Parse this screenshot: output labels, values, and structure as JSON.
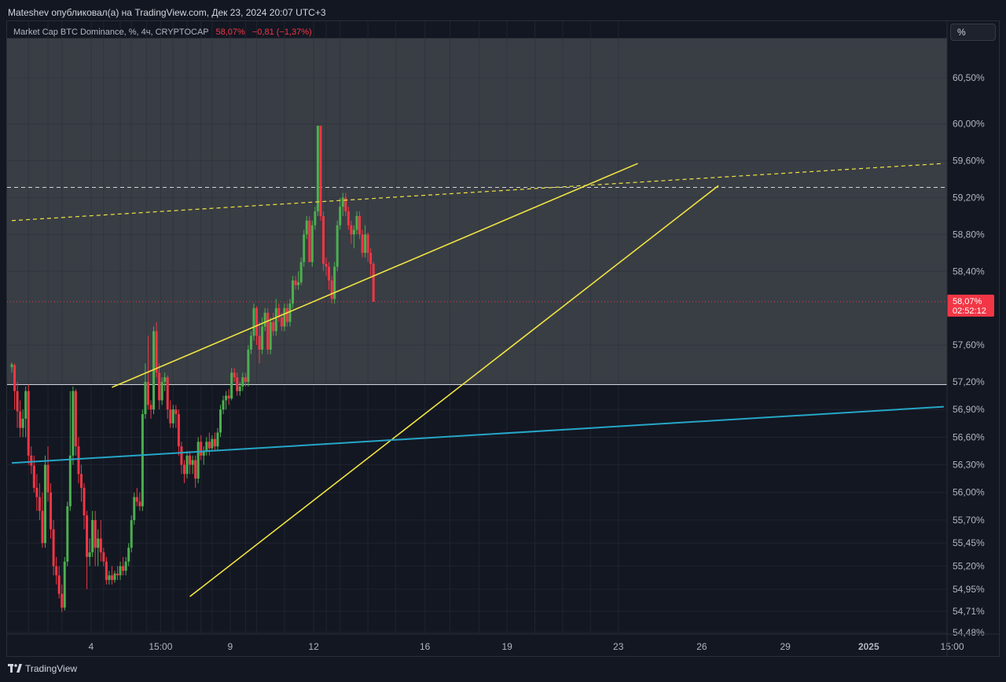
{
  "header": {
    "publish_info": "Mateshev опубликовал(а) на TradingView.com, Дек 23, 2024 20:07 UTC+3"
  },
  "legend": {
    "title": "Market Cap BTC Dominance, %, 4ч, CRYPTOCAP",
    "value": "58,07%",
    "change": "−0,81 (−1,37%)"
  },
  "scale_mode_label": "%",
  "footer": {
    "brand": "TradingView"
  },
  "colors": {
    "background": "#131722",
    "highlight_zone": "#3b4048",
    "grid": "#2a2e39",
    "up": "#4caf50",
    "down": "#f23645",
    "trendline": "#f0e442",
    "support_line": "#26a6c7",
    "horizontal_level": "#d1d4dc"
  },
  "chart_data": {
    "type": "candlestick",
    "ylim": [
      54.36,
      60.93
    ],
    "y_ticks": [
      {
        "value": 60.5,
        "label": "60,50%"
      },
      {
        "value": 60.0,
        "label": "60,00%"
      },
      {
        "value": 59.6,
        "label": "59,60%"
      },
      {
        "value": 59.2,
        "label": "59,20%"
      },
      {
        "value": 58.8,
        "label": "58,80%"
      },
      {
        "value": 58.4,
        "label": "58,40%"
      },
      {
        "value": 57.6,
        "label": "57,60%"
      },
      {
        "value": 57.2,
        "label": "57,20%"
      },
      {
        "value": 56.9,
        "label": "56,90%"
      },
      {
        "value": 56.6,
        "label": "56,60%"
      },
      {
        "value": 56.3,
        "label": "56,30%"
      },
      {
        "value": 56.0,
        "label": "56,00%"
      },
      {
        "value": 55.7,
        "label": "55,70%"
      },
      {
        "value": 55.45,
        "label": "55,45%"
      },
      {
        "value": 55.2,
        "label": "55,20%"
      },
      {
        "value": 54.95,
        "label": "54,95%"
      },
      {
        "value": 54.71,
        "label": "54,71%"
      },
      {
        "value": 54.48,
        "label": "54,48%"
      }
    ],
    "x_ticks": [
      {
        "bar": 28.5,
        "label": "4"
      },
      {
        "bar": 53.5,
        "label": "15:00"
      },
      {
        "bar": 78.5,
        "label": "9"
      },
      {
        "bar": 108.5,
        "label": "12"
      },
      {
        "bar": 148.5,
        "label": "16"
      },
      {
        "bar": 178,
        "label": "19"
      },
      {
        "bar": 218,
        "label": "23"
      },
      {
        "bar": 248,
        "label": "26"
      },
      {
        "bar": 278,
        "label": "29"
      },
      {
        "bar": 308,
        "label": "2025"
      },
      {
        "bar": 338,
        "label": "15:00"
      }
    ],
    "current_price": {
      "value": 58.07,
      "label": "58,07%",
      "countdown": "02:52:12"
    },
    "horizontal_levels": [
      {
        "value": 57.17,
        "style": "solid"
      },
      {
        "value": 59.31,
        "style": "dashed"
      }
    ],
    "highlight_zone": {
      "from": 57.17,
      "to": 60.93
    },
    "trendlines": [
      {
        "name": "upper-wedge",
        "from": [
          36,
          57.14
        ],
        "to": [
          225,
          59.57
        ],
        "style": "solid"
      },
      {
        "name": "lower-wedge",
        "from": [
          64,
          54.87
        ],
        "to": [
          254,
          59.33
        ],
        "style": "solid"
      },
      {
        "name": "dashed-resistance",
        "from": [
          0,
          58.95
        ],
        "to": [
          335,
          59.57
        ],
        "style": "dashed"
      },
      {
        "name": "support",
        "from": [
          0,
          56.32
        ],
        "to": [
          335,
          56.93
        ],
        "style": "solid"
      }
    ],
    "candles": [
      {
        "o": 57.36,
        "h": 57.41,
        "l": 57.3,
        "c": 57.39
      },
      {
        "o": 57.38,
        "h": 57.4,
        "l": 56.9,
        "c": 57.1
      },
      {
        "o": 57.1,
        "h": 57.2,
        "l": 56.7,
        "c": 56.88
      },
      {
        "o": 56.88,
        "h": 57.0,
        "l": 56.6,
        "c": 56.7
      },
      {
        "o": 56.7,
        "h": 56.9,
        "l": 56.6,
        "c": 56.8
      },
      {
        "o": 56.8,
        "h": 57.15,
        "l": 56.6,
        "c": 57.1
      },
      {
        "o": 57.1,
        "h": 57.17,
        "l": 56.3,
        "c": 56.4
      },
      {
        "o": 56.4,
        "h": 56.5,
        "l": 56.2,
        "c": 56.29
      },
      {
        "o": 56.29,
        "h": 56.4,
        "l": 56.0,
        "c": 56.05
      },
      {
        "o": 56.05,
        "h": 56.2,
        "l": 55.8,
        "c": 55.95
      },
      {
        "o": 55.95,
        "h": 56.1,
        "l": 55.7,
        "c": 55.8
      },
      {
        "o": 55.8,
        "h": 56.0,
        "l": 55.4,
        "c": 55.45
      },
      {
        "o": 55.45,
        "h": 56.4,
        "l": 55.4,
        "c": 56.3
      },
      {
        "o": 56.3,
        "h": 56.5,
        "l": 55.9,
        "c": 56.0
      },
      {
        "o": 56.0,
        "h": 56.1,
        "l": 55.5,
        "c": 55.6
      },
      {
        "o": 55.6,
        "h": 55.7,
        "l": 55.1,
        "c": 55.2
      },
      {
        "o": 55.2,
        "h": 55.3,
        "l": 55.0,
        "c": 55.1
      },
      {
        "o": 55.1,
        "h": 55.2,
        "l": 54.85,
        "c": 54.9
      },
      {
        "o": 54.9,
        "h": 55.0,
        "l": 54.7,
        "c": 54.75
      },
      {
        "o": 54.75,
        "h": 55.3,
        "l": 54.72,
        "c": 55.25
      },
      {
        "o": 55.25,
        "h": 55.9,
        "l": 55.2,
        "c": 55.85
      },
      {
        "o": 55.85,
        "h": 57.1,
        "l": 55.8,
        "c": 56.4
      },
      {
        "o": 56.4,
        "h": 57.15,
        "l": 56.3,
        "c": 57.1
      },
      {
        "o": 57.1,
        "h": 57.12,
        "l": 56.4,
        "c": 56.5
      },
      {
        "o": 56.5,
        "h": 56.6,
        "l": 56.1,
        "c": 56.2
      },
      {
        "o": 56.2,
        "h": 56.3,
        "l": 55.9,
        "c": 56.05
      },
      {
        "o": 56.05,
        "h": 56.1,
        "l": 55.6,
        "c": 55.75
      },
      {
        "o": 55.75,
        "h": 55.8,
        "l": 54.95,
        "c": 55.3
      },
      {
        "o": 55.3,
        "h": 55.5,
        "l": 55.2,
        "c": 55.35
      },
      {
        "o": 55.35,
        "h": 55.8,
        "l": 55.3,
        "c": 55.7
      },
      {
        "o": 55.7,
        "h": 55.8,
        "l": 55.2,
        "c": 55.4
      },
      {
        "o": 55.4,
        "h": 55.6,
        "l": 55.2,
        "c": 55.5
      },
      {
        "o": 55.5,
        "h": 55.7,
        "l": 55.25,
        "c": 55.35
      },
      {
        "o": 55.35,
        "h": 55.4,
        "l": 55.2,
        "c": 55.25
      },
      {
        "o": 55.25,
        "h": 55.3,
        "l": 55.0,
        "c": 55.05
      },
      {
        "o": 55.05,
        "h": 55.15,
        "l": 55.0,
        "c": 55.1
      },
      {
        "o": 55.1,
        "h": 55.2,
        "l": 55.0,
        "c": 55.05
      },
      {
        "o": 55.05,
        "h": 55.15,
        "l": 55.02,
        "c": 55.12
      },
      {
        "o": 55.12,
        "h": 55.2,
        "l": 55.05,
        "c": 55.1
      },
      {
        "o": 55.1,
        "h": 55.25,
        "l": 55.05,
        "c": 55.2
      },
      {
        "o": 55.2,
        "h": 55.3,
        "l": 55.1,
        "c": 55.15
      },
      {
        "o": 55.15,
        "h": 55.3,
        "l": 55.1,
        "c": 55.25
      },
      {
        "o": 55.25,
        "h": 55.45,
        "l": 55.2,
        "c": 55.4
      },
      {
        "o": 55.4,
        "h": 55.75,
        "l": 55.35,
        "c": 55.7
      },
      {
        "o": 55.7,
        "h": 56.0,
        "l": 55.65,
        "c": 55.95
      },
      {
        "o": 55.95,
        "h": 56.05,
        "l": 55.85,
        "c": 55.9
      },
      {
        "o": 55.9,
        "h": 56.0,
        "l": 55.8,
        "c": 55.85
      },
      {
        "o": 55.85,
        "h": 56.9,
        "l": 55.8,
        "c": 56.85
      },
      {
        "o": 56.85,
        "h": 57.4,
        "l": 56.8,
        "c": 57.2
      },
      {
        "o": 57.2,
        "h": 57.7,
        "l": 56.9,
        "c": 56.95
      },
      {
        "o": 56.95,
        "h": 57.0,
        "l": 56.8,
        "c": 56.9
      },
      {
        "o": 56.9,
        "h": 57.8,
        "l": 56.85,
        "c": 57.75
      },
      {
        "o": 57.75,
        "h": 57.85,
        "l": 57.25,
        "c": 57.3
      },
      {
        "o": 57.3,
        "h": 57.4,
        "l": 56.9,
        "c": 57.0
      },
      {
        "o": 57.0,
        "h": 57.25,
        "l": 56.95,
        "c": 57.2
      },
      {
        "o": 57.2,
        "h": 57.3,
        "l": 57.1,
        "c": 57.25
      },
      {
        "o": 57.25,
        "h": 57.27,
        "l": 56.8,
        "c": 56.9
      },
      {
        "o": 56.9,
        "h": 57.0,
        "l": 56.7,
        "c": 56.75
      },
      {
        "o": 56.75,
        "h": 56.95,
        "l": 56.7,
        "c": 56.9
      },
      {
        "o": 56.9,
        "h": 56.95,
        "l": 56.7,
        "c": 56.85
      },
      {
        "o": 56.85,
        "h": 56.9,
        "l": 56.4,
        "c": 56.5
      },
      {
        "o": 56.5,
        "h": 56.55,
        "l": 56.2,
        "c": 56.3
      },
      {
        "o": 56.3,
        "h": 56.35,
        "l": 56.1,
        "c": 56.2
      },
      {
        "o": 56.2,
        "h": 56.45,
        "l": 56.15,
        "c": 56.4
      },
      {
        "o": 56.4,
        "h": 56.45,
        "l": 56.2,
        "c": 56.3
      },
      {
        "o": 56.3,
        "h": 56.4,
        "l": 56.2,
        "c": 56.35
      },
      {
        "o": 56.35,
        "h": 56.4,
        "l": 56.05,
        "c": 56.15
      },
      {
        "o": 56.15,
        "h": 56.6,
        "l": 56.1,
        "c": 56.55
      },
      {
        "o": 56.55,
        "h": 56.62,
        "l": 56.35,
        "c": 56.4
      },
      {
        "o": 56.4,
        "h": 56.5,
        "l": 56.3,
        "c": 56.45
      },
      {
        "o": 56.45,
        "h": 56.6,
        "l": 56.4,
        "c": 56.55
      },
      {
        "o": 56.55,
        "h": 56.65,
        "l": 56.4,
        "c": 56.48
      },
      {
        "o": 56.48,
        "h": 56.62,
        "l": 56.45,
        "c": 56.58
      },
      {
        "o": 56.58,
        "h": 56.65,
        "l": 56.45,
        "c": 56.5
      },
      {
        "o": 56.5,
        "h": 56.7,
        "l": 56.45,
        "c": 56.65
      },
      {
        "o": 56.65,
        "h": 56.95,
        "l": 56.6,
        "c": 56.9
      },
      {
        "o": 56.9,
        "h": 57.05,
        "l": 56.85,
        "c": 57.0
      },
      {
        "o": 57.0,
        "h": 57.1,
        "l": 56.9,
        "c": 57.05
      },
      {
        "o": 57.05,
        "h": 57.12,
        "l": 56.95,
        "c": 57.02
      },
      {
        "o": 57.02,
        "h": 57.35,
        "l": 57.0,
        "c": 57.3
      },
      {
        "o": 57.3,
        "h": 57.35,
        "l": 57.2,
        "c": 57.25
      },
      {
        "o": 57.25,
        "h": 57.3,
        "l": 57.05,
        "c": 57.1
      },
      {
        "o": 57.1,
        "h": 57.2,
        "l": 57.05,
        "c": 57.15
      },
      {
        "o": 57.15,
        "h": 57.3,
        "l": 57.1,
        "c": 57.25
      },
      {
        "o": 57.25,
        "h": 57.3,
        "l": 57.15,
        "c": 57.2
      },
      {
        "o": 57.2,
        "h": 57.6,
        "l": 57.15,
        "c": 57.55
      },
      {
        "o": 57.55,
        "h": 57.75,
        "l": 57.5,
        "c": 57.7
      },
      {
        "o": 57.7,
        "h": 58.05,
        "l": 57.65,
        "c": 58.0
      },
      {
        "o": 58.0,
        "h": 58.02,
        "l": 57.6,
        "c": 57.7
      },
      {
        "o": 57.7,
        "h": 57.85,
        "l": 57.4,
        "c": 57.55
      },
      {
        "o": 57.55,
        "h": 57.9,
        "l": 57.5,
        "c": 57.8
      },
      {
        "o": 57.8,
        "h": 58.0,
        "l": 57.75,
        "c": 57.95
      },
      {
        "o": 57.95,
        "h": 58.0,
        "l": 57.5,
        "c": 57.55
      },
      {
        "o": 57.55,
        "h": 57.9,
        "l": 57.5,
        "c": 57.85
      },
      {
        "o": 57.85,
        "h": 57.95,
        "l": 57.7,
        "c": 57.75
      },
      {
        "o": 57.75,
        "h": 58.1,
        "l": 57.7,
        "c": 58.0
      },
      {
        "o": 58.0,
        "h": 58.05,
        "l": 57.85,
        "c": 57.9
      },
      {
        "o": 57.9,
        "h": 57.95,
        "l": 57.75,
        "c": 57.8
      },
      {
        "o": 57.8,
        "h": 58.05,
        "l": 57.75,
        "c": 58.0
      },
      {
        "o": 58.0,
        "h": 58.05,
        "l": 57.8,
        "c": 57.85
      },
      {
        "o": 57.85,
        "h": 58.1,
        "l": 57.8,
        "c": 58.05
      },
      {
        "o": 58.05,
        "h": 58.35,
        "l": 58.0,
        "c": 58.3
      },
      {
        "o": 58.3,
        "h": 58.35,
        "l": 58.2,
        "c": 58.25
      },
      {
        "o": 58.25,
        "h": 58.4,
        "l": 58.2,
        "c": 58.28
      },
      {
        "o": 58.28,
        "h": 58.55,
        "l": 58.25,
        "c": 58.5
      },
      {
        "o": 58.5,
        "h": 58.85,
        "l": 58.45,
        "c": 58.8
      },
      {
        "o": 58.8,
        "h": 59.0,
        "l": 58.75,
        "c": 58.95
      },
      {
        "o": 58.95,
        "h": 59.0,
        "l": 58.5,
        "c": 58.5
      },
      {
        "o": 58.5,
        "h": 58.95,
        "l": 58.45,
        "c": 58.9
      },
      {
        "o": 58.9,
        "h": 59.1,
        "l": 58.85,
        "c": 59.05
      },
      {
        "o": 59.05,
        "h": 59.98,
        "l": 59.0,
        "c": 59.98
      },
      {
        "o": 59.98,
        "h": 59.98,
        "l": 58.95,
        "c": 59.0
      },
      {
        "o": 59.0,
        "h": 59.05,
        "l": 58.4,
        "c": 58.48
      },
      {
        "o": 58.48,
        "h": 58.55,
        "l": 58.35,
        "c": 58.45
      },
      {
        "o": 58.45,
        "h": 58.5,
        "l": 58.2,
        "c": 58.3
      },
      {
        "o": 58.3,
        "h": 58.35,
        "l": 58.05,
        "c": 58.1
      },
      {
        "o": 58.1,
        "h": 58.5,
        "l": 58.05,
        "c": 58.45
      },
      {
        "o": 58.45,
        "h": 58.95,
        "l": 58.4,
        "c": 58.9
      },
      {
        "o": 58.9,
        "h": 59.2,
        "l": 58.85,
        "c": 59.1
      },
      {
        "o": 59.1,
        "h": 59.25,
        "l": 59.0,
        "c": 59.2
      },
      {
        "o": 59.2,
        "h": 59.25,
        "l": 59.0,
        "c": 59.05
      },
      {
        "o": 59.05,
        "h": 59.1,
        "l": 58.85,
        "c": 58.9
      },
      {
        "o": 58.9,
        "h": 58.95,
        "l": 58.7,
        "c": 58.8
      },
      {
        "o": 58.8,
        "h": 58.9,
        "l": 58.65,
        "c": 58.85
      },
      {
        "o": 58.85,
        "h": 59.05,
        "l": 58.8,
        "c": 59.0
      },
      {
        "o": 59.0,
        "h": 59.05,
        "l": 58.75,
        "c": 58.8
      },
      {
        "o": 58.8,
        "h": 58.85,
        "l": 58.55,
        "c": 58.6
      },
      {
        "o": 58.6,
        "h": 58.9,
        "l": 58.55,
        "c": 58.8
      },
      {
        "o": 58.8,
        "h": 58.82,
        "l": 58.5,
        "c": 58.6
      },
      {
        "o": 58.6,
        "h": 58.65,
        "l": 58.35,
        "c": 58.48
      },
      {
        "o": 58.48,
        "h": 58.5,
        "l": 58.07,
        "c": 58.07
      }
    ]
  }
}
